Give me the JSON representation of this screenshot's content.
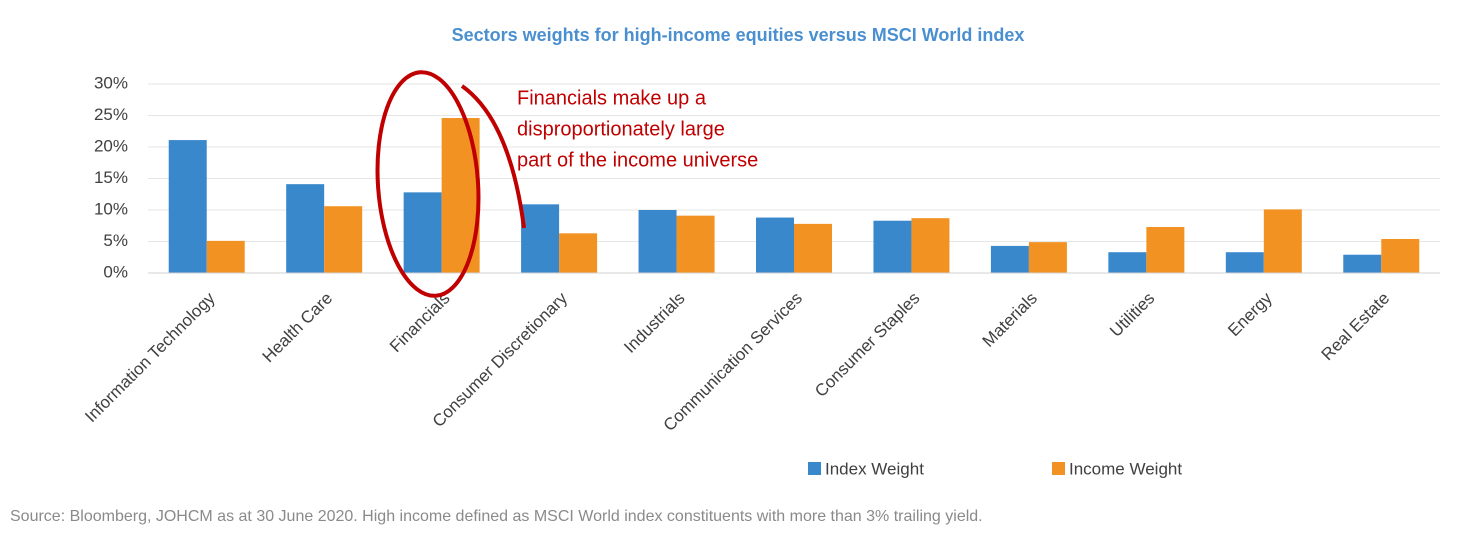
{
  "chart_data": {
    "type": "bar",
    "title": "Sectors weights for high-income equities versus MSCI World index",
    "categories": [
      "Information Technology",
      "Health Care",
      "Financials",
      "Consumer Discretionary",
      "Industrials",
      "Communication Services",
      "Consumer Staples",
      "Materials",
      "Utilities",
      "Energy",
      "Real Estate"
    ],
    "series": [
      {
        "name": "Index Weight",
        "color": "#3a88cc",
        "values": [
          21.1,
          14.1,
          12.8,
          10.9,
          10.0,
          8.8,
          8.3,
          4.3,
          3.3,
          3.3,
          2.9
        ]
      },
      {
        "name": "Income Weight",
        "color": "#f29222",
        "values": [
          5.1,
          10.6,
          24.6,
          6.3,
          9.1,
          7.8,
          8.7,
          4.9,
          7.3,
          10.1,
          5.4
        ]
      }
    ],
    "ylim": [
      0,
      30
    ],
    "yticks": [
      {
        "value": 0,
        "label": "0%"
      },
      {
        "value": 5,
        "label": "5%"
      },
      {
        "value": 10,
        "label": "10%"
      },
      {
        "value": 15,
        "label": "15%"
      },
      {
        "value": 20,
        "label": "20%"
      },
      {
        "value": 25,
        "label": "25%"
      },
      {
        "value": 30,
        "label": "30%"
      }
    ],
    "grid": true,
    "legend": "bottom",
    "annotation": [
      "Financials make up a",
      "disproportionately large",
      "part of the income universe"
    ],
    "source": "Source: Bloomberg, JOHCM as at 30 June 2020. High income defined as MSCI World index constituents with more than 3% trailing yield."
  }
}
